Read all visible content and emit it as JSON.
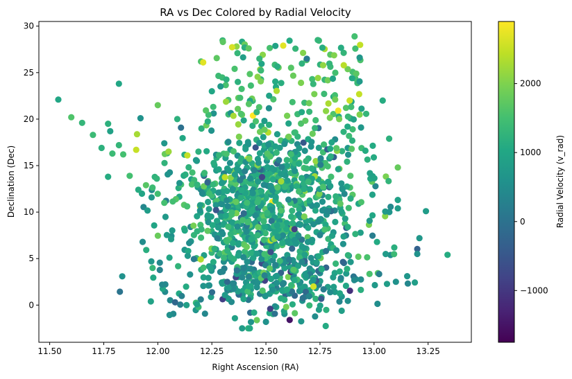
{
  "chart_data": {
    "type": "scatter",
    "title": "RA vs Dec Colored by Radial Velocity",
    "xlabel": "Right Ascension (RA)",
    "ylabel": "Declination (Dec)",
    "xlim": [
      11.45,
      13.45
    ],
    "ylim": [
      -4,
      30.5
    ],
    "xticks": [
      "11.50",
      "11.75",
      "12.00",
      "12.25",
      "12.50",
      "12.75",
      "13.00",
      "13.25"
    ],
    "yticks": [
      "0",
      "5",
      "10",
      "15",
      "20",
      "25",
      "30"
    ],
    "grid": false,
    "colorbar": {
      "label": "Radial Velocity (v_rad)",
      "range": [
        -1750,
        2900
      ],
      "ticks": [
        "−1000",
        "0",
        "1000",
        "2000"
      ],
      "colormap": "viridis"
    },
    "point_count": 1400,
    "points_sample": [
      {
        "x": 11.54,
        "y": 22.1,
        "v": 1000
      },
      {
        "x": 11.6,
        "y": 20.2,
        "v": 1600
      },
      {
        "x": 11.65,
        "y": 19.6,
        "v": 1300
      },
      {
        "x": 11.7,
        "y": 18.3,
        "v": 1400
      },
      {
        "x": 11.74,
        "y": 16.9,
        "v": 1200
      },
      {
        "x": 11.77,
        "y": 19.5,
        "v": 1200
      },
      {
        "x": 11.78,
        "y": 18.7,
        "v": 900
      },
      {
        "x": 11.79,
        "y": 16.3,
        "v": 1400
      },
      {
        "x": 11.77,
        "y": 13.8,
        "v": 1100
      },
      {
        "x": 11.82,
        "y": 23.8,
        "v": 1000
      },
      {
        "x": 11.82,
        "y": 17.2,
        "v": 1300
      },
      {
        "x": 11.84,
        "y": 16.2,
        "v": 1500
      },
      {
        "x": 11.87,
        "y": 13.9,
        "v": 1500
      },
      {
        "x": 11.9,
        "y": 16.7,
        "v": 2500
      },
      {
        "x": 11.91,
        "y": 12.4,
        "v": 1100
      },
      {
        "x": 11.92,
        "y": 20.1,
        "v": 600
      },
      {
        "x": 11.93,
        "y": 6.8,
        "v": 500
      },
      {
        "x": 11.97,
        "y": 4.7,
        "v": 700
      },
      {
        "x": 12.0,
        "y": 21.5,
        "v": 1800
      },
      {
        "x": 12.02,
        "y": 2.2,
        "v": 400
      },
      {
        "x": 12.03,
        "y": 11.0,
        "v": 1500
      },
      {
        "x": 12.05,
        "y": 16.5,
        "v": 2200
      },
      {
        "x": 12.08,
        "y": 0.3,
        "v": -200
      },
      {
        "x": 12.09,
        "y": 20.0,
        "v": 1200
      },
      {
        "x": 12.2,
        "y": 26.2,
        "v": 1600
      },
      {
        "x": 12.21,
        "y": 26.1,
        "v": 2700
      },
      {
        "x": 12.25,
        "y": 23.0,
        "v": 1000
      },
      {
        "x": 12.37,
        "y": 24.0,
        "v": 1200
      },
      {
        "x": 12.37,
        "y": 21.1,
        "v": 1800
      },
      {
        "x": 12.39,
        "y": -2.5,
        "v": 800
      },
      {
        "x": 12.42,
        "y": 27.6,
        "v": 1700
      },
      {
        "x": 12.47,
        "y": 26.5,
        "v": 1300
      },
      {
        "x": 12.5,
        "y": -1.8,
        "v": 600
      },
      {
        "x": 12.52,
        "y": -0.4,
        "v": -900
      },
      {
        "x": 12.58,
        "y": 27.9,
        "v": 2700
      },
      {
        "x": 12.61,
        "y": -1.6,
        "v": -1500
      },
      {
        "x": 12.72,
        "y": 2.0,
        "v": 2600
      },
      {
        "x": 12.74,
        "y": 28.5,
        "v": 1300
      },
      {
        "x": 12.82,
        "y": 22.1,
        "v": 1900
      },
      {
        "x": 12.86,
        "y": 25.8,
        "v": 2400
      },
      {
        "x": 12.91,
        "y": 28.9,
        "v": 1500
      },
      {
        "x": 12.94,
        "y": 19.1,
        "v": 700
      },
      {
        "x": 12.96,
        "y": 16.6,
        "v": 1100
      },
      {
        "x": 13.04,
        "y": 22.0,
        "v": 1100
      },
      {
        "x": 13.07,
        "y": 17.9,
        "v": 1200
      },
      {
        "x": 13.11,
        "y": 14.8,
        "v": 1800
      },
      {
        "x": 13.11,
        "y": 10.4,
        "v": 800
      },
      {
        "x": 13.2,
        "y": 5.5,
        "v": 600
      },
      {
        "x": 13.21,
        "y": 7.2,
        "v": 700
      },
      {
        "x": 13.24,
        "y": 10.1,
        "v": 800
      },
      {
        "x": 13.34,
        "y": 5.4,
        "v": 1100
      }
    ]
  }
}
